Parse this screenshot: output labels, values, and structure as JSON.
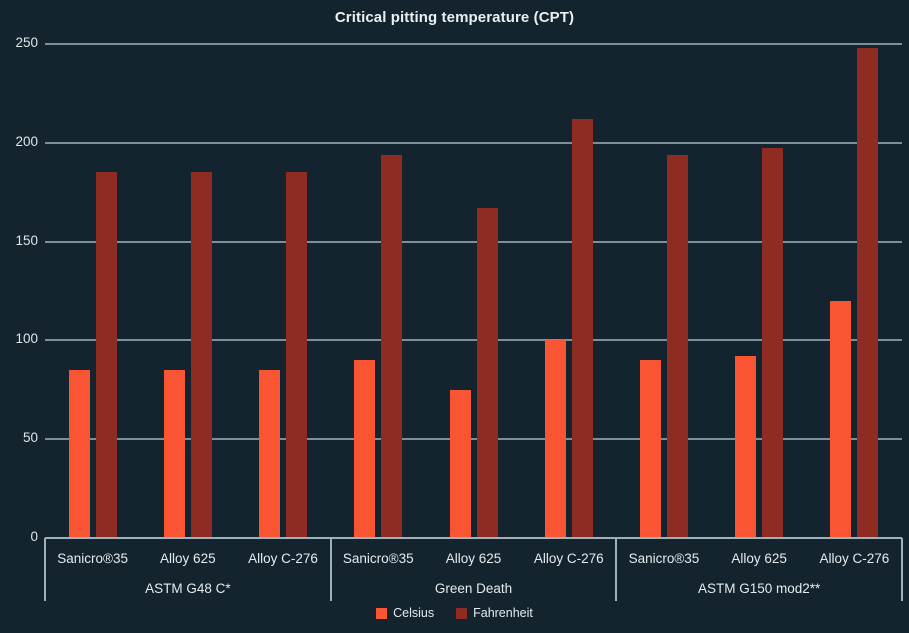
{
  "header": {
    "title": "Critical pitting temperature (CPT)"
  },
  "colors": {
    "background": "#13242E",
    "celsius": "#FA5533",
    "fahrenheit": "#8E2B23",
    "gridline": "#8FA3AD",
    "axis": "#9FB1BA",
    "text": "#E4EBEF"
  },
  "legend": {
    "items": [
      {
        "label": "Celsius",
        "color": "#FA5533"
      },
      {
        "label": "Fahrenheit",
        "color": "#8E2B23"
      }
    ]
  },
  "chart_data": {
    "type": "bar",
    "title": "Critical pitting temperature (CPT)",
    "ylabel": "",
    "xlabel": "",
    "ylim": [
      0,
      250
    ],
    "yticks": [
      0,
      50,
      100,
      150,
      200,
      250
    ],
    "grid": true,
    "legend_position": "bottom",
    "series_names": [
      "Celsius",
      "Fahrenheit"
    ],
    "groups": [
      {
        "label": "ASTM G48 C*",
        "categories": [
          "Sanicro®35",
          "Alloy 625",
          "Alloy C-276"
        ],
        "series": [
          {
            "name": "Celsius",
            "values": [
              85,
              85,
              85
            ]
          },
          {
            "name": "Fahrenheit",
            "values": [
              185,
              185,
              185
            ]
          }
        ]
      },
      {
        "label": "Green Death",
        "categories": [
          "Sanicro®35",
          "Alloy 625",
          "Alloy C-276"
        ],
        "series": [
          {
            "name": "Celsius",
            "values": [
              90,
              75,
              100
            ]
          },
          {
            "name": "Fahrenheit",
            "values": [
              194,
              167,
              212
            ]
          }
        ]
      },
      {
        "label": "ASTM G150 mod2**",
        "categories": [
          "Sanicro®35",
          "Alloy 625",
          "Alloy C-276"
        ],
        "series": [
          {
            "name": "Celsius",
            "values": [
              90,
              92,
              120
            ]
          },
          {
            "name": "Fahrenheit",
            "values": [
              194,
              197.6,
              248
            ]
          }
        ]
      }
    ]
  }
}
